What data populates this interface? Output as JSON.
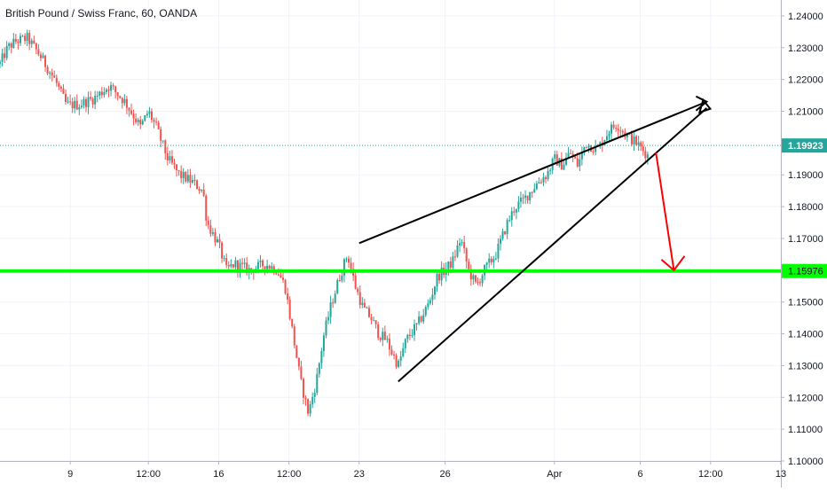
{
  "chart_data": {
    "type": "candlestick",
    "title": "British Pound / Swiss Franc, 60, OANDA",
    "ylim": [
      1.1,
      1.245
    ],
    "y_ticks": [
      {
        "value": 1.24,
        "label": "1.24000"
      },
      {
        "value": 1.23,
        "label": "1.23000"
      },
      {
        "value": 1.22,
        "label": "1.22000"
      },
      {
        "value": 1.21,
        "label": "1.21000"
      },
      {
        "value": 1.19,
        "label": "1.19000"
      },
      {
        "value": 1.18,
        "label": "1.18000"
      },
      {
        "value": 1.17,
        "label": "1.17000"
      },
      {
        "value": 1.15,
        "label": "1.15000"
      },
      {
        "value": 1.14,
        "label": "1.14000"
      },
      {
        "value": 1.13,
        "label": "1.13000"
      },
      {
        "value": 1.12,
        "label": "1.12000"
      },
      {
        "value": 1.11,
        "label": "1.11000"
      },
      {
        "value": 1.1,
        "label": "1.10000"
      }
    ],
    "x_ticks": [
      {
        "t": 0.09,
        "label": "9"
      },
      {
        "t": 0.19,
        "label": "12:00"
      },
      {
        "t": 0.28,
        "label": "16"
      },
      {
        "t": 0.37,
        "label": "12:00"
      },
      {
        "t": 0.46,
        "label": "23"
      },
      {
        "t": 0.57,
        "label": "26"
      },
      {
        "t": 0.71,
        "label": "Apr"
      },
      {
        "t": 0.82,
        "label": "6"
      },
      {
        "t": 0.91,
        "label": "12:00"
      },
      {
        "t": 1.0,
        "label": "13"
      }
    ],
    "last_price": {
      "value": 1.19923,
      "label": "1.19923",
      "color": "#26a69a"
    },
    "support_level": {
      "value": 1.15976,
      "label": "1.15976",
      "color": "#00ff00"
    },
    "colors": {
      "up": "#26a69a",
      "down": "#ef5350",
      "grid": "#f0f3fa",
      "axis_text": "#131722",
      "trend": "#000000",
      "forecast": "#ff0000"
    },
    "price_path": [
      [
        0.0,
        1.225
      ],
      [
        0.01,
        1.23
      ],
      [
        0.02,
        1.232
      ],
      [
        0.035,
        1.233
      ],
      [
        0.05,
        1.228
      ],
      [
        0.07,
        1.22
      ],
      [
        0.085,
        1.212
      ],
      [
        0.1,
        1.212
      ],
      [
        0.12,
        1.214
      ],
      [
        0.14,
        1.218
      ],
      [
        0.16,
        1.213
      ],
      [
        0.18,
        1.205
      ],
      [
        0.19,
        1.21
      ],
      [
        0.2,
        1.205
      ],
      [
        0.215,
        1.195
      ],
      [
        0.23,
        1.19
      ],
      [
        0.245,
        1.188
      ],
      [
        0.26,
        1.185
      ],
      [
        0.265,
        1.175
      ],
      [
        0.28,
        1.168
      ],
      [
        0.29,
        1.16
      ],
      [
        0.3,
        1.162
      ],
      [
        0.32,
        1.16
      ],
      [
        0.34,
        1.162
      ],
      [
        0.355,
        1.16
      ],
      [
        0.365,
        1.155
      ],
      [
        0.375,
        1.14
      ],
      [
        0.385,
        1.125
      ],
      [
        0.395,
        1.115
      ],
      [
        0.405,
        1.125
      ],
      [
        0.415,
        1.14
      ],
      [
        0.425,
        1.15
      ],
      [
        0.435,
        1.158
      ],
      [
        0.445,
        1.165
      ],
      [
        0.455,
        1.155
      ],
      [
        0.465,
        1.148
      ],
      [
        0.475,
        1.145
      ],
      [
        0.485,
        1.14
      ],
      [
        0.495,
        1.138
      ],
      [
        0.5,
        1.135
      ],
      [
        0.51,
        1.13
      ],
      [
        0.52,
        1.138
      ],
      [
        0.535,
        1.143
      ],
      [
        0.55,
        1.15
      ],
      [
        0.56,
        1.158
      ],
      [
        0.57,
        1.16
      ],
      [
        0.58,
        1.163
      ],
      [
        0.59,
        1.17
      ],
      [
        0.6,
        1.16
      ],
      [
        0.61,
        1.155
      ],
      [
        0.62,
        1.16
      ],
      [
        0.635,
        1.165
      ],
      [
        0.65,
        1.175
      ],
      [
        0.66,
        1.18
      ],
      [
        0.67,
        1.182
      ],
      [
        0.68,
        1.185
      ],
      [
        0.69,
        1.188
      ],
      [
        0.7,
        1.19
      ],
      [
        0.71,
        1.195
      ],
      [
        0.72,
        1.193
      ],
      [
        0.73,
        1.197
      ],
      [
        0.74,
        1.193
      ],
      [
        0.75,
        1.2
      ],
      [
        0.765,
        1.198
      ],
      [
        0.78,
        1.204
      ],
      [
        0.79,
        1.206
      ],
      [
        0.8,
        1.203
      ],
      [
        0.815,
        1.2
      ],
      [
        0.83,
        1.196
      ]
    ],
    "trendlines": [
      {
        "from": [
          0.46,
          1.1685
        ],
        "to": [
          0.905,
          1.213
        ]
      },
      {
        "from": [
          0.51,
          1.125
        ],
        "to": [
          0.905,
          1.211
        ]
      }
    ],
    "forecast_arrow": {
      "from": [
        0.84,
        1.197
      ],
      "to": [
        0.863,
        1.16
      ]
    }
  }
}
